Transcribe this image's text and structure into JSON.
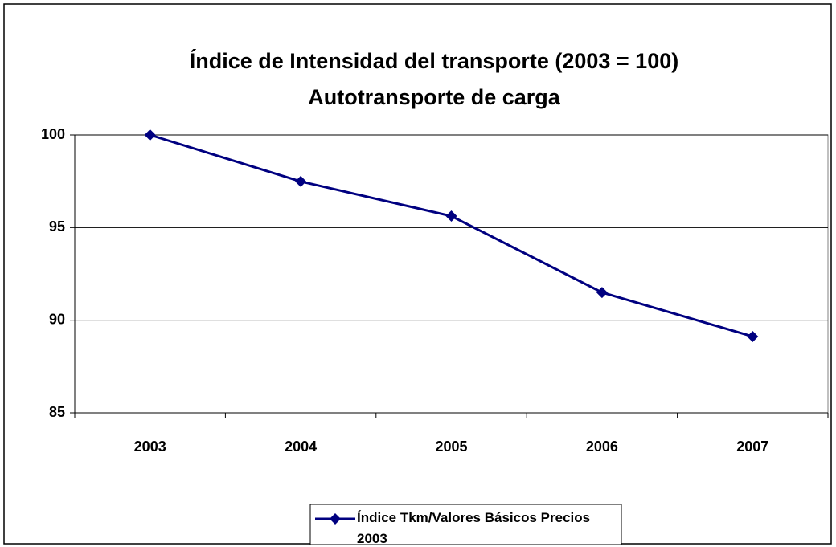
{
  "chart_data": {
    "type": "line",
    "title": "Índice de Intensidad del transporte (2003 = 100)",
    "subtitle": "Autotransporte de carga",
    "categories": [
      "2003",
      "2004",
      "2005",
      "2006",
      "2007"
    ],
    "series": [
      {
        "name": "Índice Tkm/Valores Básicos Precios 2003",
        "color": "#000080",
        "values": [
          100,
          97.49,
          95.62,
          91.5,
          89.12
        ]
      }
    ],
    "ylim": [
      85,
      100
    ],
    "yticks": [
      85,
      90,
      95,
      100
    ],
    "grid": true,
    "legend": "bottom"
  }
}
